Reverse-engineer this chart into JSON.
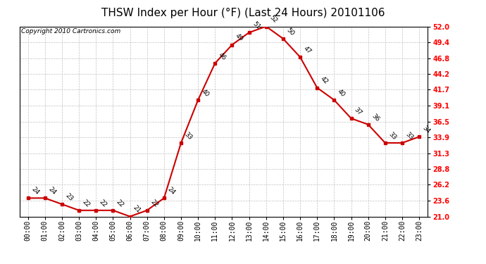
{
  "title": "THSW Index per Hour (°F) (Last 24 Hours) 20101106",
  "copyright": "Copyright 2010 Cartronics.com",
  "hours": [
    "00:00",
    "01:00",
    "02:00",
    "03:00",
    "04:00",
    "05:00",
    "06:00",
    "07:00",
    "08:00",
    "09:00",
    "10:00",
    "11:00",
    "12:00",
    "13:00",
    "14:00",
    "15:00",
    "16:00",
    "17:00",
    "18:00",
    "19:00",
    "20:00",
    "21:00",
    "22:00",
    "23:00"
  ],
  "values": [
    24,
    24,
    23,
    22,
    22,
    22,
    21,
    22,
    24,
    33,
    40,
    46,
    49,
    51,
    52,
    50,
    47,
    42,
    40,
    37,
    36,
    33,
    33,
    34
  ],
  "y_ticks": [
    21.0,
    23.6,
    26.2,
    28.8,
    31.3,
    33.9,
    36.5,
    39.1,
    41.7,
    44.2,
    46.8,
    49.4,
    52.0
  ],
  "ylim": [
    21.0,
    52.0
  ],
  "line_color": "#cc0000",
  "marker_color": "#cc0000",
  "bg_color": "#ffffff",
  "grid_color": "#bbbbbb",
  "title_fontsize": 11,
  "tick_fontsize": 7,
  "label_fontsize": 6.5,
  "copyright_fontsize": 6.5
}
